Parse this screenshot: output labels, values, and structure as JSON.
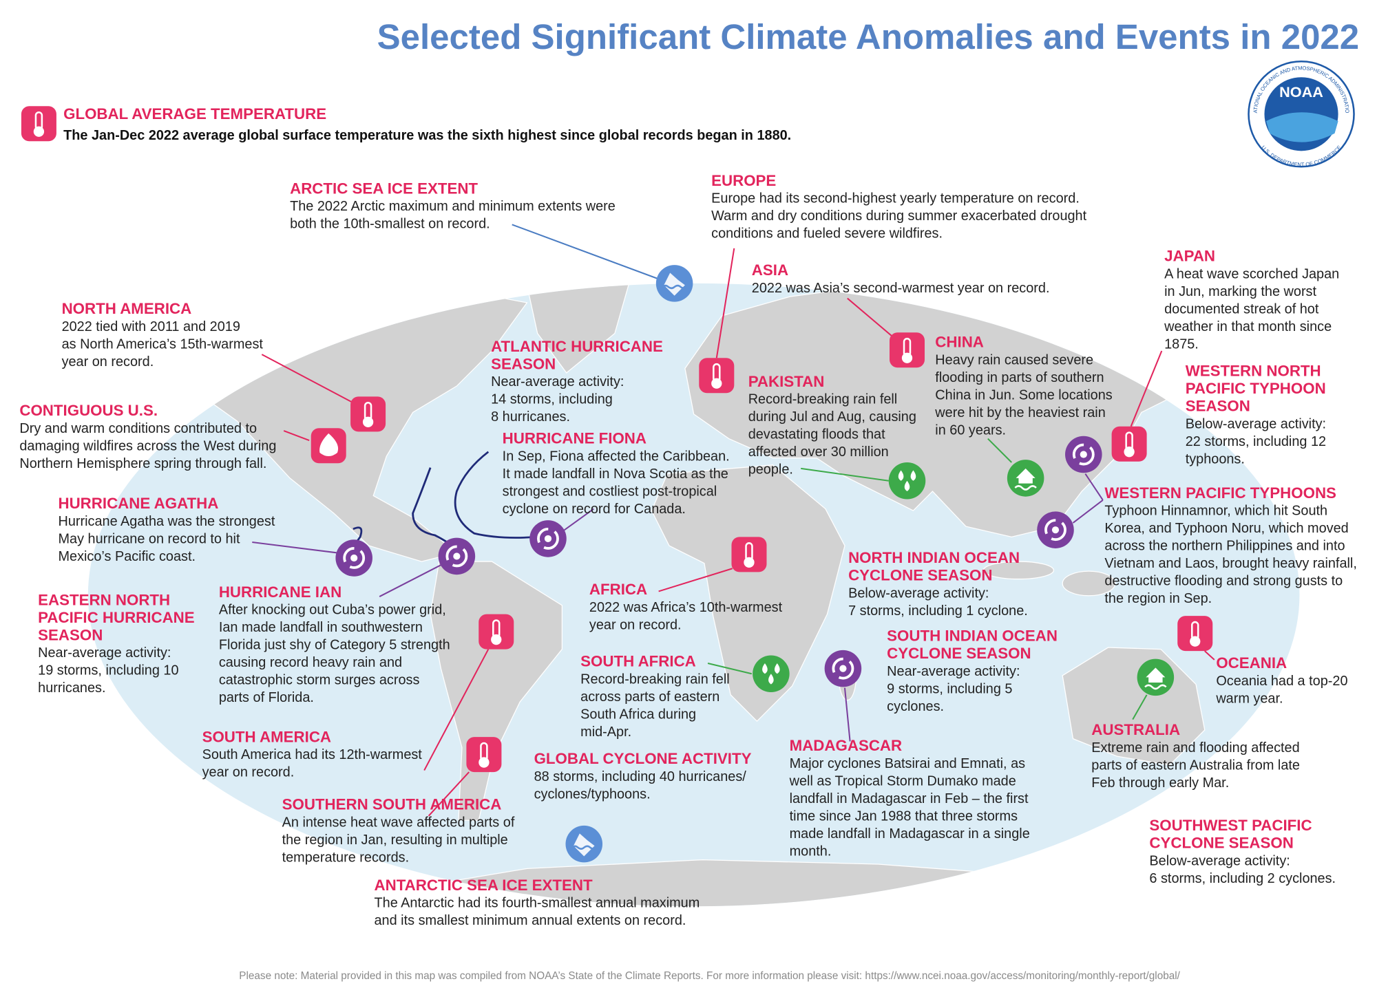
{
  "title": "Selected Significant Climate Anomalies and Events in 2022",
  "global": {
    "heading": "GLOBAL AVERAGE TEMPERATURE",
    "text": "The Jan-Dec 2022 average global surface temperature was the sixth highest since global records began in 1880."
  },
  "logo": {
    "name": "NOAA",
    "ring_top": "NATIONAL OCEANIC AND ATMOSPHERIC ADMINISTRATION",
    "ring_bottom": "U.S. DEPARTMENT OF COMMERCE"
  },
  "events": [
    {
      "heading": [
        "ARCTIC SEA ICE EXTENT"
      ],
      "text": [
        "The 2022 Arctic maximum and minimum extents were",
        "both the 10th-smallest on record."
      ]
    },
    {
      "heading": [
        "EUROPE"
      ],
      "text": [
        "Europe had its second-highest yearly temperature on record.",
        "Warm and dry conditions during summer exacerbated drought",
        "conditions and fueled severe wildfires."
      ]
    },
    {
      "heading": [
        "ASIA"
      ],
      "text": [
        "2022 was Asia’s second-warmest year on record."
      ]
    },
    {
      "heading": [
        "JAPAN"
      ],
      "text": [
        "A heat wave scorched Japan",
        "in Jun, marking the worst",
        "documented streak of hot",
        "weather in that month since",
        "1875."
      ]
    },
    {
      "heading": [
        "NORTH AMERICA"
      ],
      "text": [
        "2022 tied with 2011 and 2019",
        "as North America’s 15th-warmest",
        "year on record."
      ]
    },
    {
      "heading": [
        "ATLANTIC HURRICANE",
        "SEASON"
      ],
      "text": [
        "Near-average activity:",
        "14 storms, including",
        "8 hurricanes."
      ]
    },
    {
      "heading": [
        "CHINA"
      ],
      "text": [
        "Heavy rain caused severe",
        "flooding in parts of southern",
        "China in Jun. Some locations",
        "were hit by the heaviest rain",
        "in 60 years."
      ]
    },
    {
      "heading": [
        "PAKISTAN"
      ],
      "text": [
        "Record-breaking rain fell",
        "during Jul and Aug, causing",
        "devastating floods that",
        "affected over 30 million",
        "people."
      ]
    },
    {
      "heading": [
        "WESTERN NORTH",
        "PACIFIC TYPHOON",
        "SEASON"
      ],
      "text": [
        "Below-average activity:",
        "22 storms, including 12",
        "typhoons."
      ]
    },
    {
      "heading": [
        "CONTIGUOUS U.S."
      ],
      "text": [
        "Dry and warm conditions contributed to",
        "damaging wildfires across the West during",
        "Northern Hemisphere spring through fall."
      ]
    },
    {
      "heading": [
        "HURRICANE FIONA"
      ],
      "text": [
        "In Sep, Fiona affected the Caribbean.",
        "It made landfall in Nova Scotia as the",
        "strongest and costliest post-tropical",
        "cyclone on record for Canada."
      ]
    },
    {
      "heading": [
        "WESTERN PACIFIC TYPHOONS"
      ],
      "text": [
        "Typhoon Hinnamnor, which hit South",
        "Korea, and Typhoon Noru, which moved",
        "across the northern Philippines and into",
        "Vietnam and Laos, brought heavy rainfall,",
        "destructive flooding and strong gusts to",
        "the region in Sep."
      ]
    },
    {
      "heading": [
        "HURRICANE AGATHA"
      ],
      "text": [
        "Hurricane Agatha was the strongest",
        "May hurricane on record to hit",
        "Mexico’s Pacific coast."
      ]
    },
    {
      "heading": [
        "NORTH INDIAN OCEAN",
        "CYCLONE SEASON"
      ],
      "text": [
        "Below-average activity:",
        "7 storms, including 1 cyclone."
      ]
    },
    {
      "heading": [
        "AFRICA"
      ],
      "text": [
        "2022 was Africa’s 10th-warmest",
        "year on record."
      ]
    },
    {
      "heading": [
        "HURRICANE IAN"
      ],
      "text": [
        "After knocking out Cuba’s power grid,",
        "Ian made landfall in southwestern",
        "Florida just shy of Category 5 strength",
        "causing record heavy rain and",
        "catastrophic storm surges across",
        "parts of Florida."
      ]
    },
    {
      "heading": [
        "EASTERN NORTH",
        "PACIFIC HURRICANE",
        "SEASON"
      ],
      "text": [
        "Near-average activity:",
        "19 storms, including 10",
        "hurricanes."
      ]
    },
    {
      "heading": [
        "SOUTH INDIAN OCEAN",
        "CYCLONE SEASON"
      ],
      "text": [
        "Near-average activity:",
        "9 storms, including 5",
        "cyclones."
      ]
    },
    {
      "heading": [
        "SOUTH AFRICA"
      ],
      "text": [
        "Record-breaking rain fell",
        "across parts of eastern",
        "South Africa during",
        "mid-Apr."
      ]
    },
    {
      "heading": [
        "OCEANIA"
      ],
      "text": [
        "Oceania had a top-20",
        "warm year."
      ]
    },
    {
      "heading": [
        "AUSTRALIA"
      ],
      "text": [
        "Extreme rain and flooding affected",
        "parts of eastern Australia from late",
        "Feb through early Mar."
      ]
    },
    {
      "heading": [
        "SOUTH AMERICA"
      ],
      "text": [
        "South America had its 12th-warmest",
        "year on record."
      ]
    },
    {
      "heading": [
        "MADAGASCAR"
      ],
      "text": [
        "Major cyclones Batsirai and Emnati, as",
        "well as Tropical Storm Dumako made",
        "landfall in Madagascar in Feb – the first",
        "time since Jan 1988 that three storms",
        "made landfall in Madagascar in a single",
        "month."
      ]
    },
    {
      "heading": [
        "GLOBAL CYCLONE ACTIVITY"
      ],
      "text": [
        "88 storms, including 40 hurricanes/",
        "cyclones/typhoons."
      ]
    },
    {
      "heading": [
        "SOUTHERN SOUTH AMERICA"
      ],
      "text": [
        "An intense heat wave affected parts of",
        "the region in Jan, resulting in multiple",
        "temperature records."
      ]
    },
    {
      "heading": [
        "SOUTHWEST PACIFIC",
        "CYCLONE SEASON"
      ],
      "text": [
        "Below-average activity:",
        "6 storms, including 2 cyclones."
      ]
    },
    {
      "heading": [
        "ANTARCTIC SEA ICE EXTENT"
      ],
      "text": [
        "The Antarctic had its fourth-smallest annual maximum",
        "and its smallest minimum annual extents on record."
      ]
    }
  ],
  "footnote": "Please note: Material provided in this map was compiled from NOAA’s State of the Climate Reports. For more information please visit: https://www.ncei.noaa.gov/access/monitoring/monthly-report/global/"
}
